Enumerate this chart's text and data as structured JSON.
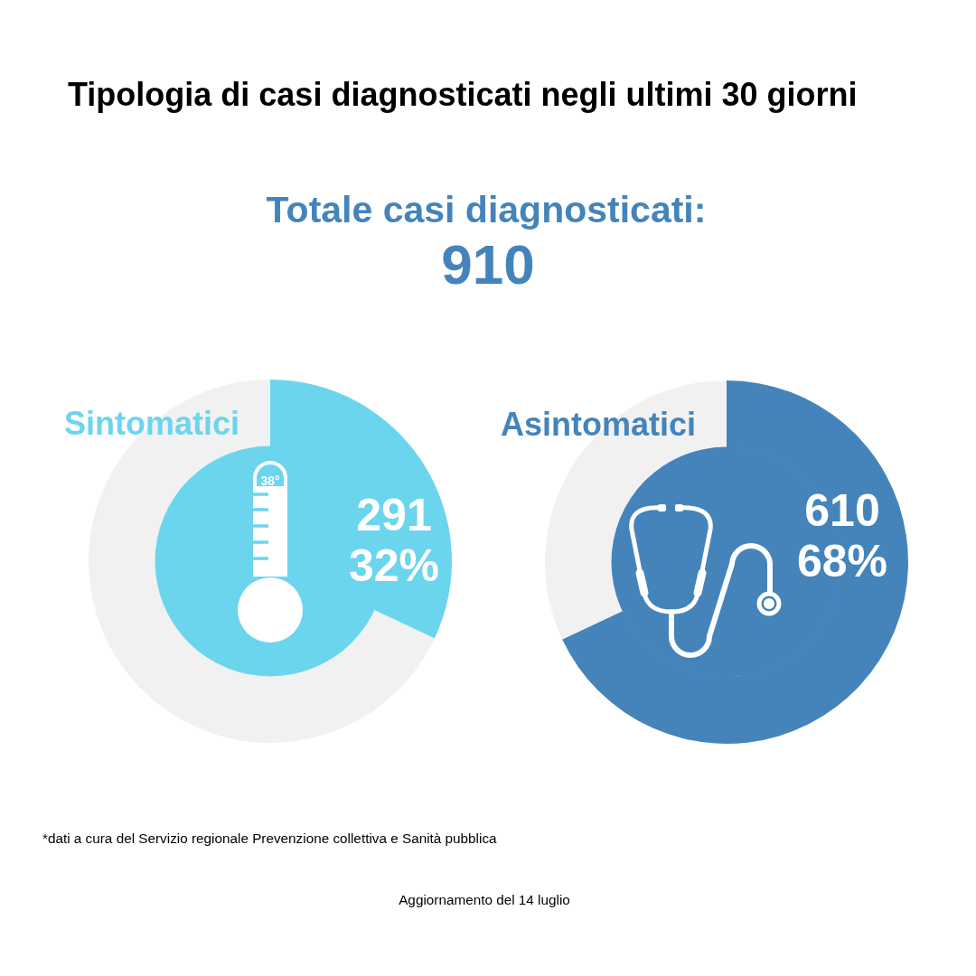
{
  "chart_data": [
    {
      "type": "other",
      "title": "Tipologia di casi diagnosticati negli ultimi 30 giorni",
      "subtitle": "Totale casi diagnosticati:",
      "annotations": [
        "910",
        "*dati a cura del Servizio regionale Prevenzione collettiva e Sanità pubblica",
        "Aggiornamento del 14 luglio"
      ]
    },
    {
      "type": "donut",
      "title": "Sintomatici",
      "categories": [
        null,
        null
      ],
      "values": [
        32,
        68
      ],
      "colors": [
        "#6cd5ee",
        "#f1f1f1"
      ],
      "value_labels": [
        "291\n32%",
        null
      ],
      "annotations": [
        "38°"
      ]
    },
    {
      "type": "donut",
      "title": "Asintomatici",
      "categories": [
        null,
        null
      ],
      "values": [
        68,
        32
      ],
      "colors": [
        "#4484bb",
        "#f1f1f1"
      ],
      "value_labels": [
        "610\n68%",
        null
      ]
    }
  ]
}
